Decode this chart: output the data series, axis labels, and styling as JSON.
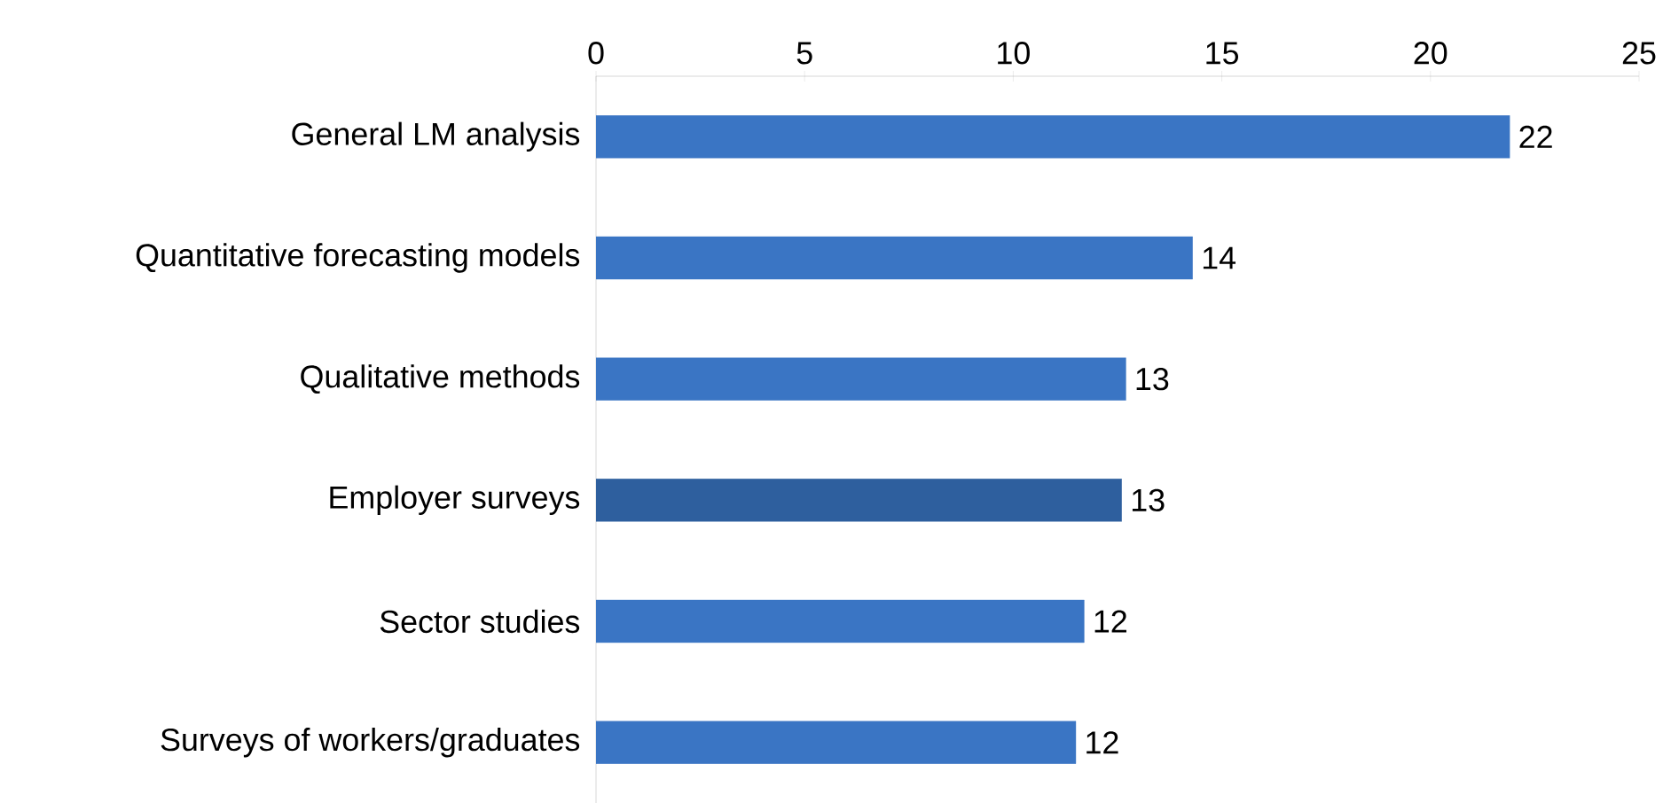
{
  "chart_data": {
    "type": "bar",
    "orientation": "horizontal",
    "categories": [
      "General LM analysis",
      "Quantitative forecasting models",
      "Qualitative methods",
      "Employer surveys",
      "Sector studies",
      "Surveys of workers/graduates"
    ],
    "values": [
      21.9,
      14.3,
      12.7,
      12.6,
      11.7,
      11.5
    ],
    "value_labels": [
      "22",
      "14",
      "13",
      "13",
      "12",
      "12"
    ],
    "colors": [
      "#3a75c4",
      "#3a75c4",
      "#3a75c4",
      "#2e5f9e",
      "#3a75c4",
      "#3a75c4"
    ],
    "xlim": [
      0,
      25
    ],
    "xticks": [
      0,
      5,
      10,
      15,
      20,
      25
    ],
    "grid": false
  }
}
